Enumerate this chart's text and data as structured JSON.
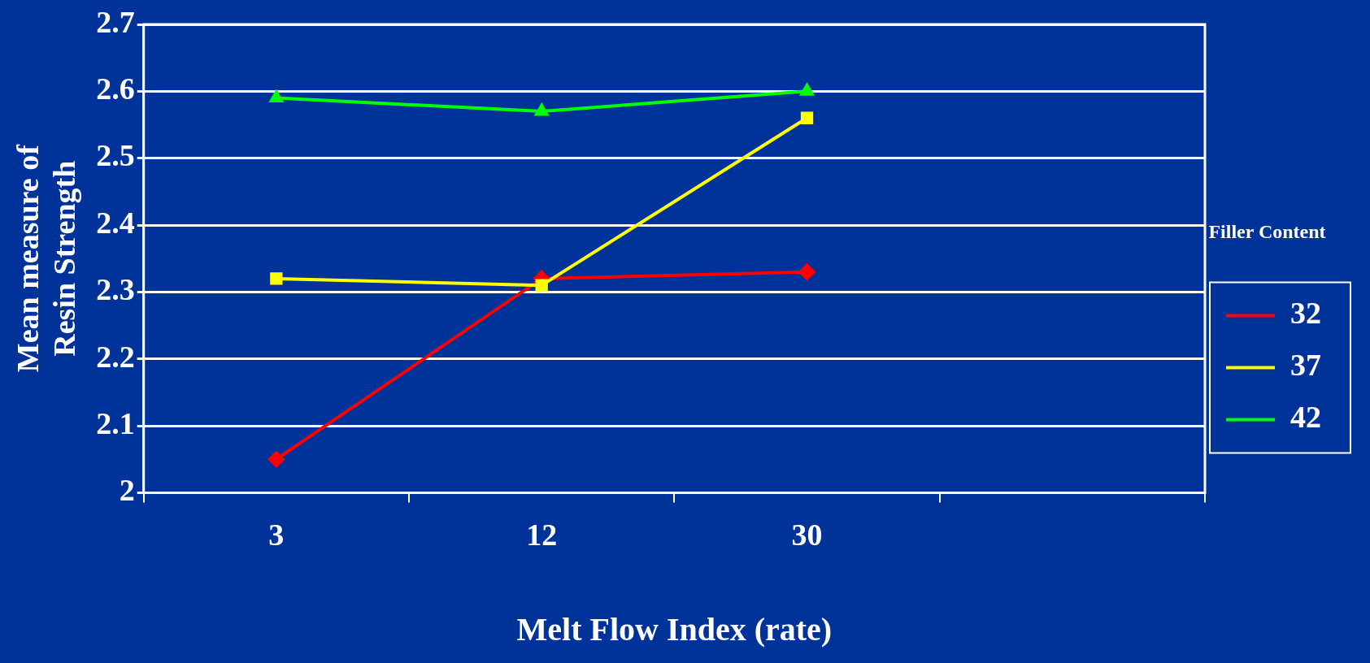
{
  "chart_data": {
    "type": "line",
    "xlabel": "Melt Flow Index (rate)",
    "ylabel": "Mean measure of Resin Strength",
    "legend_title": "Filler Content",
    "categories": [
      "3",
      "12",
      "30",
      null
    ],
    "series": [
      {
        "name": "32",
        "color": "#ff0000",
        "marker": "diamond",
        "values": [
          2.05,
          2.32,
          2.33,
          null
        ]
      },
      {
        "name": "37",
        "color": "#ffff00",
        "marker": "square",
        "values": [
          2.32,
          2.31,
          2.56,
          null
        ]
      },
      {
        "name": "42",
        "color": "#00ff00",
        "marker": "triangle",
        "values": [
          2.59,
          2.57,
          2.6,
          null
        ]
      }
    ],
    "ylim": [
      2,
      2.7
    ],
    "yticks": [
      2,
      2.1,
      2.2,
      2.3,
      2.4,
      2.5,
      2.6,
      2.7
    ],
    "grid": "y",
    "legend": "right"
  }
}
